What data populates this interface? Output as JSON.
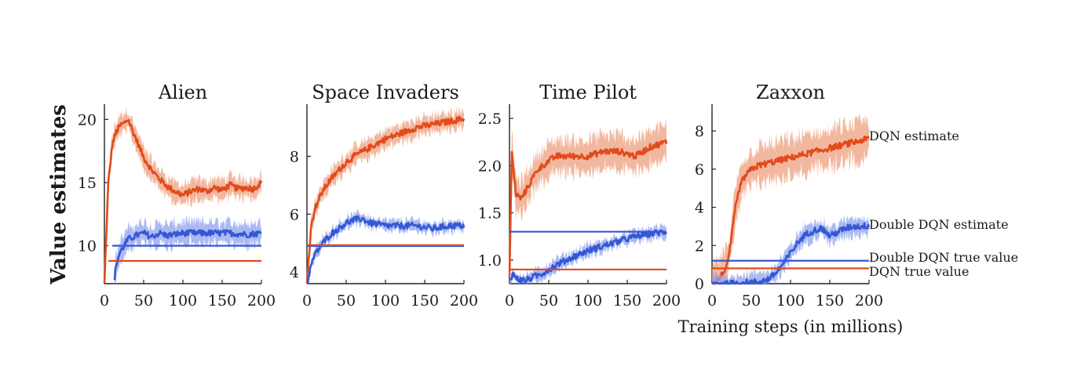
{
  "figure": {
    "ylabel": "Value estimates",
    "xlabel": "Training steps (in millions)"
  },
  "colors": {
    "dqn": "#e24a1c",
    "double": "#3457d5",
    "dqn_band": "#eea07f",
    "double_band": "#8ea2ee"
  },
  "legend": {
    "dqn_estimate": "DQN estimate",
    "double_estimate": "Double DQN estimate",
    "double_true": "Double DQN true value",
    "dqn_true": "DQN true value"
  },
  "chart_data": [
    {
      "type": "line",
      "title": "Alien",
      "xlim": [
        0,
        200
      ],
      "ylim": [
        7,
        21.2
      ],
      "x_ticks": [
        0,
        50,
        100,
        150,
        200
      ],
      "y_ticks": [
        10,
        15,
        20
      ],
      "y_tick_labels": [
        "10",
        "15",
        "20"
      ],
      "series": [
        {
          "key": "dqn_estimate",
          "x": [
            0,
            5,
            10,
            15,
            20,
            25,
            30,
            40,
            50,
            60,
            70,
            80,
            90,
            100,
            110,
            120,
            130,
            140,
            150,
            160,
            170,
            180,
            190,
            200
          ],
          "y": [
            7,
            15,
            18,
            19,
            19.5,
            19.7,
            20,
            18.5,
            17,
            16,
            15.3,
            14.7,
            14.3,
            14,
            14.3,
            14.5,
            14.3,
            14.6,
            14.4,
            14.8,
            14.5,
            14.6,
            14.5,
            15
          ],
          "spread": 0.9
        },
        {
          "key": "double_estimate",
          "x": [
            0,
            10,
            12,
            15,
            20,
            25,
            30,
            40,
            50,
            60,
            70,
            80,
            100,
            120,
            140,
            160,
            180,
            200
          ],
          "y": [
            null,
            null,
            7,
            8.5,
            9.5,
            10,
            10.5,
            10.8,
            11,
            10.7,
            11,
            10.8,
            11,
            11,
            11,
            11,
            10.9,
            11
          ],
          "spread": 1.0
        },
        {
          "key": "double_true",
          "x": [
            10,
            200
          ],
          "y": [
            10,
            10
          ]
        },
        {
          "key": "dqn_true",
          "x": [
            5,
            200
          ],
          "y": [
            8.8,
            8.8
          ]
        }
      ]
    },
    {
      "type": "line",
      "title": "Space Invaders",
      "xlim": [
        0,
        200
      ],
      "ylim": [
        3.6,
        9.8
      ],
      "x_ticks": [
        0,
        50,
        100,
        150,
        200
      ],
      "y_ticks": [
        4,
        6,
        8
      ],
      "y_tick_labels": [
        "4",
        "6",
        "8"
      ],
      "series": [
        {
          "key": "dqn_estimate",
          "x": [
            0,
            5,
            10,
            20,
            30,
            40,
            50,
            60,
            80,
            100,
            120,
            140,
            160,
            180,
            200
          ],
          "y": [
            3.6,
            5.5,
            6.2,
            6.8,
            7.2,
            7.5,
            7.8,
            8,
            8.3,
            8.6,
            8.8,
            9,
            9.1,
            9.2,
            9.3
          ],
          "spread": 0.35
        },
        {
          "key": "double_estimate",
          "x": [
            0,
            5,
            10,
            20,
            30,
            40,
            50,
            60,
            70,
            80,
            100,
            120,
            140,
            160,
            180,
            200
          ],
          "y": [
            3.6,
            4.2,
            4.6,
            5,
            5.3,
            5.5,
            5.7,
            5.8,
            5.85,
            5.7,
            5.6,
            5.6,
            5.6,
            5.5,
            5.6,
            5.6
          ],
          "spread": 0.22
        },
        {
          "key": "double_true",
          "x": [
            0,
            200
          ],
          "y": [
            4.9,
            4.9
          ]
        },
        {
          "key": "dqn_true",
          "x": [
            0,
            200
          ],
          "y": [
            4.93,
            4.93
          ]
        }
      ]
    },
    {
      "type": "line",
      "title": "Time Pilot",
      "xlim": [
        0,
        200
      ],
      "ylim": [
        0.75,
        2.65
      ],
      "x_ticks": [
        0,
        50,
        100,
        150,
        200
      ],
      "y_ticks": [
        1.0,
        1.5,
        2.0,
        2.5
      ],
      "y_tick_labels": [
        "1.0",
        "1.5",
        "2.0",
        "2.5"
      ],
      "series": [
        {
          "key": "dqn_estimate",
          "x": [
            0,
            3,
            8,
            15,
            25,
            35,
            50,
            60,
            80,
            100,
            120,
            140,
            160,
            180,
            200
          ],
          "y": [
            0.8,
            2.15,
            1.7,
            1.65,
            1.8,
            1.95,
            2.05,
            2.1,
            2.1,
            2.1,
            2.15,
            2.15,
            2.1,
            2.2,
            2.25
          ],
          "spread": 0.2
        },
        {
          "key": "double_estimate",
          "x": [
            0,
            5,
            10,
            20,
            30,
            40,
            50,
            60,
            80,
            100,
            120,
            140,
            160,
            180,
            200
          ],
          "y": [
            0.8,
            0.85,
            0.8,
            0.78,
            0.82,
            0.85,
            0.9,
            0.95,
            1.03,
            1.1,
            1.15,
            1.2,
            1.25,
            1.28,
            1.3
          ],
          "spread": 0.07
        },
        {
          "key": "double_true",
          "x": [
            0,
            200
          ],
          "y": [
            1.3,
            1.3
          ]
        },
        {
          "key": "dqn_true",
          "x": [
            0,
            200
          ],
          "y": [
            0.9,
            0.9
          ]
        }
      ]
    },
    {
      "type": "line",
      "title": "Zaxxon",
      "xlim": [
        0,
        200
      ],
      "ylim": [
        0,
        9.4
      ],
      "x_ticks": [
        0,
        50,
        100,
        150,
        200
      ],
      "y_ticks": [
        0,
        2,
        4,
        6,
        8
      ],
      "y_tick_labels": [
        "0",
        "2",
        "4",
        "6",
        "8"
      ],
      "series": [
        {
          "key": "dqn_estimate",
          "x": [
            0,
            10,
            20,
            25,
            30,
            35,
            40,
            50,
            60,
            70,
            80,
            90,
            100,
            120,
            140,
            160,
            180,
            200
          ],
          "y": [
            0,
            0.3,
            1,
            2.5,
            4,
            5,
            5.5,
            6,
            6.2,
            6.3,
            6.4,
            6.5,
            6.6,
            6.8,
            7,
            7.2,
            7.4,
            7.6
          ],
          "spread": 1.1
        },
        {
          "key": "double_estimate",
          "x": [
            0,
            20,
            40,
            60,
            70,
            80,
            90,
            100,
            110,
            120,
            130,
            140,
            150,
            160,
            170,
            180,
            190,
            200
          ],
          "y": [
            0,
            0,
            0.05,
            0.1,
            0.2,
            0.5,
            1,
            1.6,
            2.2,
            2.6,
            2.8,
            2.9,
            2.5,
            2.7,
            2.9,
            3,
            3,
            3.05
          ],
          "spread": 0.5
        },
        {
          "key": "double_true",
          "x": [
            0,
            200
          ],
          "y": [
            1.2,
            1.2
          ]
        },
        {
          "key": "dqn_true",
          "x": [
            0,
            200
          ],
          "y": [
            0.8,
            0.8
          ]
        }
      ]
    }
  ]
}
